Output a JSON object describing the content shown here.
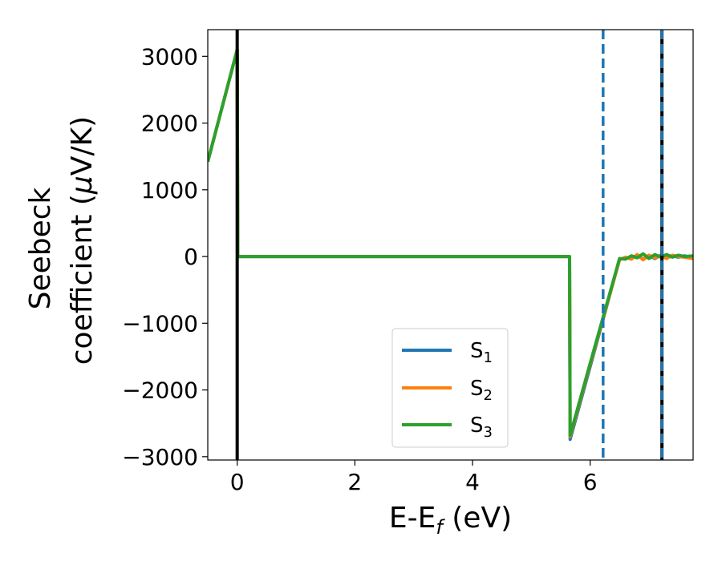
{
  "chart_data": {
    "type": "line",
    "xlabel": "E-E",
    "xlabel_sub": "f",
    "xlabel_unit": " (eV)",
    "ylabel_line1": "Seebeck",
    "ylabel_line2": "coefficient  (",
    "ylabel_mu": "μ",
    "ylabel_unit": "V/K)",
    "xlim": [
      -0.5,
      7.75
    ],
    "ylim": [
      -3050,
      3400
    ],
    "xticks": [
      0,
      2,
      4,
      6
    ],
    "xtick_labels": [
      "0",
      "2",
      "4",
      "6"
    ],
    "yticks": [
      -3000,
      -2000,
      -1000,
      0,
      1000,
      2000,
      3000
    ],
    "ytick_labels": [
      "−3000",
      "−2000",
      "−1000",
      "0",
      "1000",
      "2000",
      "3000"
    ],
    "grid": false,
    "legend_position": "lower-center",
    "series": [
      {
        "name": "S",
        "name_sub": "1",
        "color": "#1f77b4",
        "x": [
          -0.5,
          0.0,
          0.01,
          2.0,
          4.0,
          5.65,
          5.66,
          6.0,
          6.5,
          6.6,
          6.7,
          6.8,
          6.9,
          7.0,
          7.1,
          7.2,
          7.3,
          7.4,
          7.5,
          7.6,
          7.75
        ],
        "y": [
          1420,
          3100,
          0,
          0,
          0,
          0,
          -2740,
          -1650,
          -40,
          -20,
          -30,
          20,
          -40,
          10,
          -30,
          20,
          -20,
          10,
          -10,
          10,
          -20
        ]
      },
      {
        "name": "S",
        "name_sub": "2",
        "color": "#ff7f0e",
        "x": [
          -0.5,
          0.0,
          0.01,
          2.0,
          4.0,
          5.65,
          5.66,
          6.0,
          6.5,
          6.6,
          6.7,
          6.8,
          6.9,
          7.0,
          7.1,
          7.2,
          7.3,
          7.4,
          7.5,
          7.6,
          7.75
        ],
        "y": [
          1420,
          3100,
          0,
          0,
          0,
          0,
          -2700,
          -1620,
          -50,
          -10,
          -40,
          30,
          -50,
          20,
          -20,
          10,
          -30,
          20,
          0,
          -10,
          -30
        ]
      },
      {
        "name": "S",
        "name_sub": "3",
        "color": "#2ca02c",
        "x": [
          -0.5,
          0.0,
          0.01,
          2.0,
          4.0,
          5.65,
          5.66,
          6.0,
          6.5,
          6.6,
          6.7,
          6.8,
          6.9,
          7.0,
          7.1,
          7.2,
          7.3,
          7.4,
          7.5,
          7.6,
          7.75
        ],
        "y": [
          1420,
          3100,
          0,
          0,
          0,
          0,
          -2680,
          -1600,
          -30,
          -40,
          10,
          -20,
          40,
          -30,
          30,
          -10,
          30,
          -10,
          20,
          0,
          10
        ]
      }
    ],
    "vlines": [
      {
        "x": 0.0,
        "style": "solid",
        "color": "#000000"
      },
      {
        "x": 6.22,
        "style": "dashed",
        "color": "#1f77b4"
      },
      {
        "x": 7.22,
        "style": "solid",
        "color": "#000000"
      },
      {
        "x": 7.22,
        "style": "dashed",
        "color": "#1f77b4"
      }
    ]
  }
}
